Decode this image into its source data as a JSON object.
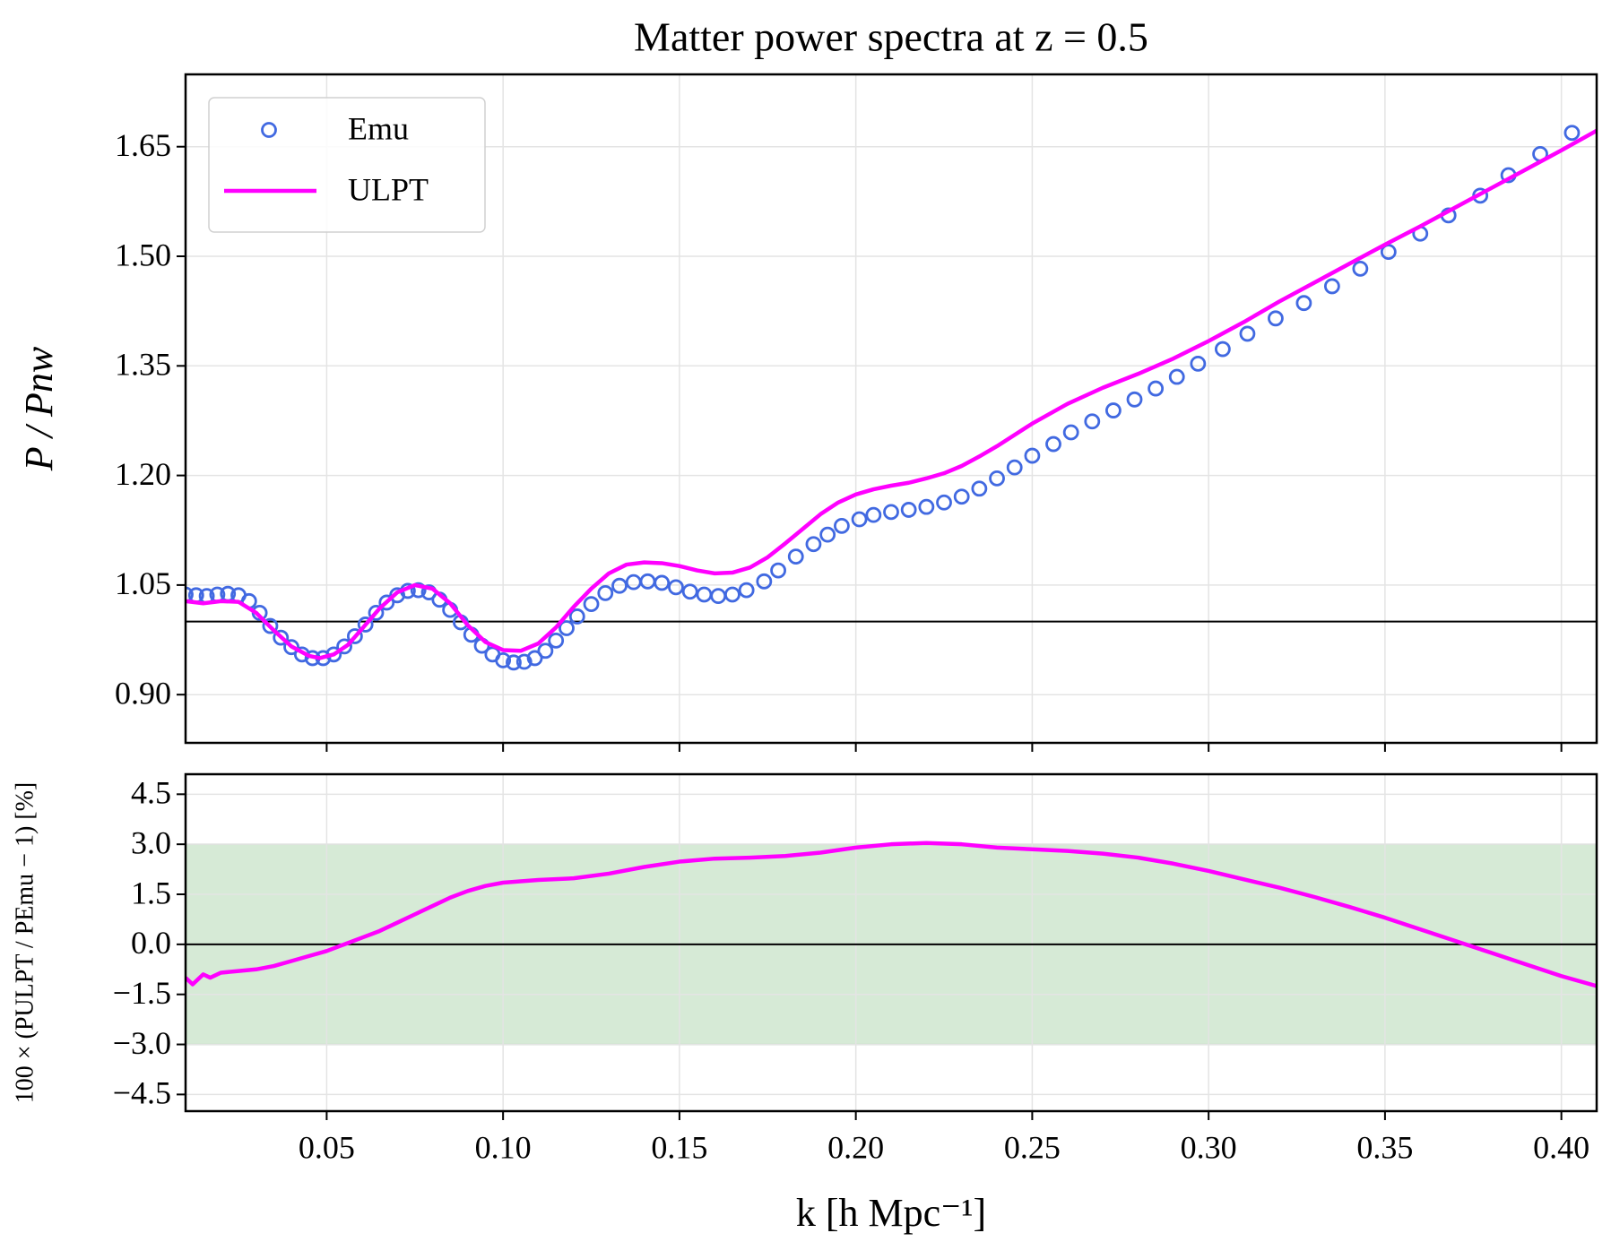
{
  "chart_data": [
    {
      "type": "line",
      "title": "Matter power spectra at z = 0.5",
      "ylabel": "P / Pnw",
      "xlim": [
        0.01,
        0.41
      ],
      "ylim": [
        0.834,
        1.749
      ],
      "yticks": [
        {
          "value": 0.9,
          "label": "0.90"
        },
        1.05,
        {
          "value": 1.2,
          "label": "1.20"
        },
        1.35,
        {
          "value": 1.5,
          "label": "1.50"
        },
        1.65
      ],
      "grid": true,
      "reference_line": 1,
      "legend": "upper left",
      "series": [
        {
          "name": "Emu",
          "color": "#4169e1",
          "mode": "markers",
          "x": [
            0.01,
            0.013,
            0.016,
            0.019,
            0.022,
            0.025,
            0.028,
            0.031,
            0.034,
            0.037,
            0.04,
            0.043,
            0.046,
            0.049,
            0.052,
            0.055,
            0.058,
            0.061,
            0.064,
            0.067,
            0.07,
            0.073,
            0.076,
            0.079,
            0.082,
            0.085,
            0.088,
            0.091,
            0.094,
            0.097,
            0.1,
            0.103,
            0.106,
            0.109,
            0.112,
            0.115,
            0.118,
            0.121,
            0.125,
            0.129,
            0.133,
            0.137,
            0.141,
            0.145,
            0.149,
            0.153,
            0.157,
            0.161,
            0.165,
            0.169,
            0.174,
            0.178,
            0.183,
            0.188,
            0.192,
            0.196,
            0.201,
            0.205,
            0.21,
            0.215,
            0.22,
            0.225,
            0.23,
            0.235,
            0.24,
            0.245,
            0.25,
            0.256,
            0.261,
            0.267,
            0.273,
            0.279,
            0.285,
            0.291,
            0.297,
            0.304,
            0.311,
            0.319,
            0.327,
            0.335,
            0.343,
            0.351,
            0.36,
            0.368,
            0.377,
            0.385,
            0.394,
            0.403
          ],
          "values": [
            1.037,
            1.036,
            1.035,
            1.037,
            1.038,
            1.036,
            1.028,
            1.012,
            0.994,
            0.978,
            0.965,
            0.955,
            0.95,
            0.95,
            0.955,
            0.966,
            0.98,
            0.996,
            1.012,
            1.026,
            1.036,
            1.042,
            1.043,
            1.04,
            1.03,
            1.016,
            0.999,
            0.982,
            0.967,
            0.955,
            0.947,
            0.944,
            0.945,
            0.95,
            0.96,
            0.974,
            0.991,
            1.007,
            1.024,
            1.039,
            1.049,
            1.054,
            1.055,
            1.053,
            1.047,
            1.041,
            1.037,
            1.035,
            1.037,
            1.043,
            1.055,
            1.07,
            1.089,
            1.106,
            1.119,
            1.131,
            1.14,
            1.146,
            1.15,
            1.153,
            1.157,
            1.163,
            1.171,
            1.182,
            1.196,
            1.211,
            1.227,
            1.243,
            1.259,
            1.274,
            1.289,
            1.304,
            1.319,
            1.335,
            1.353,
            1.373,
            1.394,
            1.415,
            1.436,
            1.459,
            1.483,
            1.506,
            1.531,
            1.556,
            1.583,
            1.611,
            1.64,
            1.669
          ]
        },
        {
          "name": "ULPT",
          "color": "#ff00ff",
          "mode": "line",
          "x": [
            0.01,
            0.015,
            0.02,
            0.025,
            0.03,
            0.035,
            0.04,
            0.045,
            0.048,
            0.052,
            0.056,
            0.06,
            0.065,
            0.07,
            0.075,
            0.08,
            0.085,
            0.09,
            0.095,
            0.1,
            0.105,
            0.11,
            0.115,
            0.12,
            0.125,
            0.13,
            0.135,
            0.14,
            0.145,
            0.15,
            0.155,
            0.16,
            0.165,
            0.17,
            0.175,
            0.18,
            0.185,
            0.19,
            0.195,
            0.2,
            0.205,
            0.21,
            0.215,
            0.22,
            0.225,
            0.23,
            0.235,
            0.24,
            0.25,
            0.26,
            0.27,
            0.28,
            0.29,
            0.3,
            0.31,
            0.32,
            0.33,
            0.34,
            0.35,
            0.36,
            0.37,
            0.38,
            0.39,
            0.4,
            0.41
          ],
          "values": [
            1.028,
            1.025,
            1.028,
            1.027,
            1.012,
            0.988,
            0.966,
            0.953,
            0.95,
            0.955,
            0.968,
            0.99,
            1.018,
            1.04,
            1.05,
            1.045,
            1.025,
            0.995,
            0.972,
            0.961,
            0.96,
            0.97,
            0.992,
            1.02,
            1.045,
            1.066,
            1.078,
            1.081,
            1.08,
            1.076,
            1.07,
            1.066,
            1.067,
            1.074,
            1.088,
            1.107,
            1.127,
            1.147,
            1.163,
            1.174,
            1.181,
            1.186,
            1.19,
            1.196,
            1.203,
            1.213,
            1.226,
            1.24,
            1.271,
            1.298,
            1.32,
            1.339,
            1.36,
            1.384,
            1.41,
            1.438,
            1.464,
            1.49,
            1.516,
            1.541,
            1.567,
            1.593,
            1.619,
            1.645,
            1.672
          ]
        }
      ]
    },
    {
      "type": "line",
      "ylabel": "100 × (PULPT / PEmu − 1) [%]",
      "xlabel": "k [h Mpc⁻¹]",
      "xlim": [
        0.01,
        0.41
      ],
      "ylim": [
        -5,
        5.1
      ],
      "xticks": [
        0.05,
        {
          "value": 0.1,
          "label": "0.10"
        },
        0.15,
        {
          "value": 0.2,
          "label": "0.20"
        },
        0.25,
        {
          "value": 0.3,
          "label": "0.30"
        },
        0.35,
        {
          "value": 0.4,
          "label": "0.40"
        }
      ],
      "yticks": [
        {
          "value": -4.5,
          "label": "−4.5"
        },
        {
          "value": -3,
          "label": "−3.0"
        },
        {
          "value": -1.5,
          "label": "−1.5"
        },
        {
          "value": 0,
          "label": "0.0"
        },
        1.5,
        {
          "value": 3,
          "label": "3.0"
        },
        4.5
      ],
      "grid": true,
      "reference_line": 0,
      "band": [
        -3,
        3
      ],
      "band_color": "#d6ead6",
      "series": [
        {
          "color": "#ff00ff",
          "mode": "line",
          "x": [
            0.01,
            0.012,
            0.015,
            0.017,
            0.02,
            0.025,
            0.03,
            0.035,
            0.04,
            0.045,
            0.05,
            0.055,
            0.06,
            0.065,
            0.07,
            0.075,
            0.08,
            0.085,
            0.09,
            0.095,
            0.1,
            0.11,
            0.12,
            0.13,
            0.14,
            0.15,
            0.16,
            0.17,
            0.18,
            0.19,
            0.2,
            0.21,
            0.22,
            0.23,
            0.24,
            0.25,
            0.26,
            0.27,
            0.28,
            0.29,
            0.3,
            0.31,
            0.32,
            0.33,
            0.34,
            0.35,
            0.36,
            0.37,
            0.38,
            0.39,
            0.4,
            0.41
          ],
          "values": [
            -1.0,
            -1.2,
            -0.9,
            -1.0,
            -0.85,
            -0.8,
            -0.75,
            -0.65,
            -0.5,
            -0.35,
            -0.2,
            0.0,
            0.2,
            0.4,
            0.65,
            0.9,
            1.15,
            1.4,
            1.6,
            1.75,
            1.85,
            1.93,
            1.98,
            2.12,
            2.32,
            2.48,
            2.57,
            2.6,
            2.65,
            2.75,
            2.9,
            3.0,
            3.04,
            3.0,
            2.9,
            2.85,
            2.8,
            2.72,
            2.6,
            2.42,
            2.2,
            1.95,
            1.7,
            1.42,
            1.12,
            0.8,
            0.45,
            0.1,
            -0.25,
            -0.6,
            -0.95,
            -1.25
          ]
        }
      ]
    }
  ]
}
